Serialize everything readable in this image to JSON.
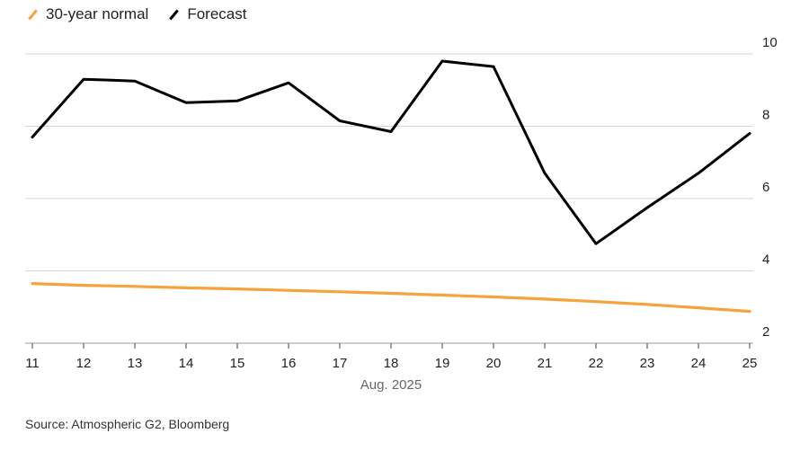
{
  "legend": [
    {
      "name": "30-year normal",
      "color": "#f5a33a"
    },
    {
      "name": "Forecast",
      "color": "#000000"
    }
  ],
  "source": "Source: Atmospheric G2, Bloomberg",
  "chart_data": {
    "type": "line",
    "x": [
      11,
      12,
      13,
      14,
      15,
      16,
      17,
      18,
      19,
      20,
      21,
      22,
      23,
      24,
      25
    ],
    "x_tick_labels": [
      "11",
      "12",
      "13",
      "14",
      "15",
      "16",
      "17",
      "18",
      "19",
      "20",
      "21",
      "22",
      "23",
      "24",
      "25"
    ],
    "xlabel": "Aug. 2025",
    "ylim": [
      2,
      10
    ],
    "yticks": [
      2,
      4,
      6,
      8,
      10
    ],
    "grid": true,
    "y_axis_side": "right",
    "legend_position": "top-left",
    "series": [
      {
        "name": "30-year normal",
        "color": "#f5a33a",
        "values": [
          3.65,
          3.6,
          3.57,
          3.53,
          3.5,
          3.46,
          3.42,
          3.38,
          3.33,
          3.28,
          3.22,
          3.15,
          3.07,
          2.98,
          2.88
        ]
      },
      {
        "name": "Forecast",
        "color": "#000000",
        "values": [
          7.7,
          9.3,
          9.25,
          8.65,
          8.7,
          9.2,
          8.15,
          7.85,
          9.8,
          9.65,
          6.7,
          4.75,
          5.75,
          6.7,
          7.8
        ]
      }
    ]
  }
}
